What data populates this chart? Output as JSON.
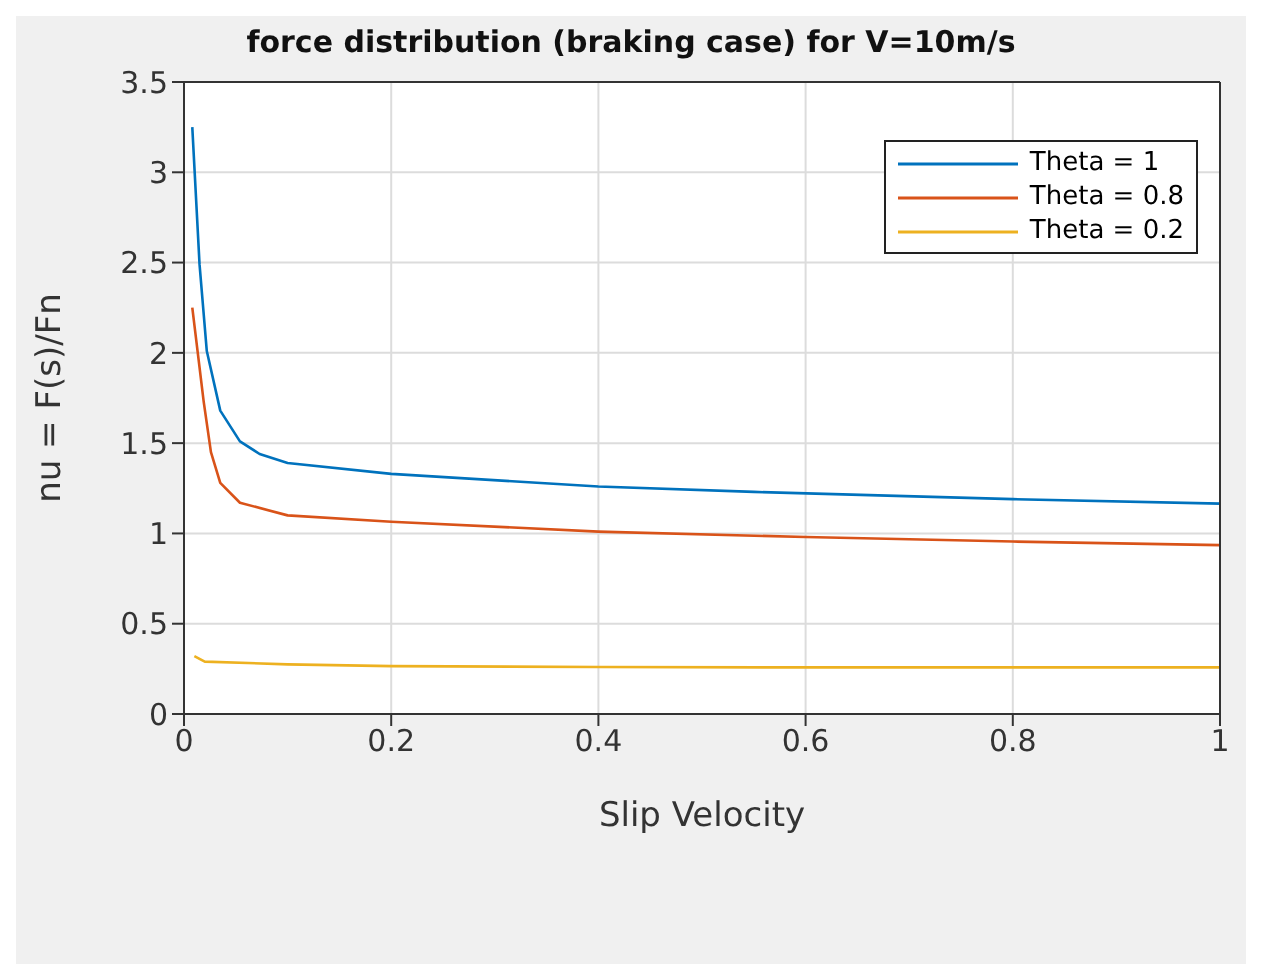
{
  "chart_data": {
    "type": "line",
    "title": "force distribution (braking case) for V=10m/s",
    "xlabel": "Slip Velocity",
    "ylabel": "nu = F(s)/Fn",
    "xlim": [
      0,
      1
    ],
    "xticks": [
      0,
      0.2,
      0.4,
      0.6,
      0.8,
      1
    ],
    "ylim": [
      0,
      3.5
    ],
    "yticks": [
      0,
      0.5,
      1,
      1.5,
      2,
      2.5,
      3,
      3.5
    ],
    "grid": true,
    "legend": "top right",
    "marker": "none",
    "line_style": "solid",
    "series": [
      {
        "name": "Theta = 1",
        "color": "#0072bd",
        "x": [
          0.008,
          0.015,
          0.022,
          0.035,
          0.054,
          0.073,
          0.1,
          0.2,
          0.4,
          0.55,
          0.8,
          1
        ],
        "values": [
          3.25,
          2.49,
          2.01,
          1.68,
          1.51,
          1.44,
          1.39,
          1.33,
          1.26,
          1.23,
          1.19,
          1.165
        ]
      },
      {
        "name": "Theta = 0.8",
        "color": "#d95319",
        "x": [
          0.008,
          0.019,
          0.026,
          0.035,
          0.054,
          0.1,
          0.2,
          0.4,
          0.6,
          0.8,
          1
        ],
        "values": [
          2.25,
          1.73,
          1.45,
          1.28,
          1.17,
          1.1,
          1.065,
          1.01,
          0.98,
          0.955,
          0.935
        ]
      },
      {
        "name": "Theta = 0.2",
        "color": "#edb120",
        "x": [
          0.01,
          0.02,
          0.1,
          0.2,
          0.4,
          0.6,
          1
        ],
        "values": [
          0.32,
          0.29,
          0.275,
          0.265,
          0.26,
          0.258,
          0.258
        ]
      }
    ]
  }
}
